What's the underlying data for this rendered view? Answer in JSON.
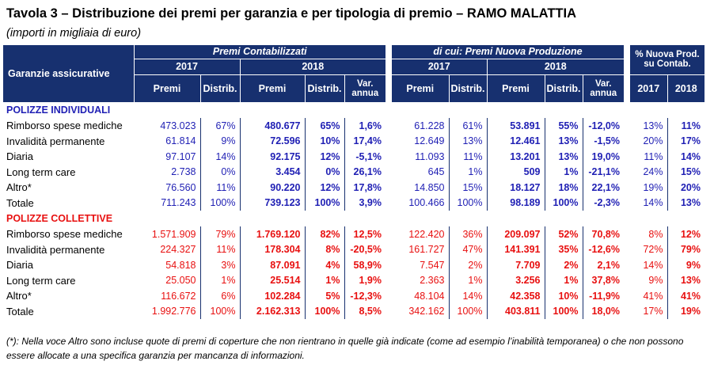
{
  "title": "Tavola 3 – Distribuzione dei premi per garanzia e per tipologia di premio – RAMO MALATTIA",
  "subtitle": "(importi in migliaia di euro)",
  "header": {
    "group_contab": "Premi Contabilizzati",
    "group_np": "di cui: Premi Nuova Produzione",
    "group_pct": "% Nuova Prod. su Contab.",
    "year_2017": "2017",
    "year_2018": "2018",
    "row_label": "Garanzie assicurative",
    "premi": "Premi",
    "distrib": "Distrib.",
    "var": "Var. annua"
  },
  "sections": [
    {
      "name": "POLIZZE INDIVIDUALI",
      "rows": [
        {
          "label": "Rimborso spese mediche",
          "v": [
            "473.023",
            "67%",
            "480.677",
            "65%",
            "1,6%",
            "61.228",
            "61%",
            "53.891",
            "55%",
            "-12,0%",
            "13%",
            "11%"
          ]
        },
        {
          "label": "Invalidità permanente",
          "v": [
            "61.814",
            "9%",
            "72.596",
            "10%",
            "17,4%",
            "12.649",
            "13%",
            "12.461",
            "13%",
            "-1,5%",
            "20%",
            "17%"
          ]
        },
        {
          "label": "Diaria",
          "v": [
            "97.107",
            "14%",
            "92.175",
            "12%",
            "-5,1%",
            "11.093",
            "11%",
            "13.201",
            "13%",
            "19,0%",
            "11%",
            "14%"
          ]
        },
        {
          "label": "Long term care",
          "v": [
            "2.738",
            "0%",
            "3.454",
            "0%",
            "26,1%",
            "645",
            "1%",
            "509",
            "1%",
            "-21,1%",
            "24%",
            "15%"
          ]
        },
        {
          "label": "Altro*",
          "v": [
            "76.560",
            "11%",
            "90.220",
            "12%",
            "17,8%",
            "14.850",
            "15%",
            "18.127",
            "18%",
            "22,1%",
            "19%",
            "20%"
          ]
        },
        {
          "label": "Totale",
          "v": [
            "711.243",
            "100%",
            "739.123",
            "100%",
            "3,9%",
            "100.466",
            "100%",
            "98.189",
            "100%",
            "-2,3%",
            "14%",
            "13%"
          ]
        }
      ]
    },
    {
      "name": "POLIZZE COLLETTIVE",
      "rows": [
        {
          "label": "Rimborso spese mediche",
          "v": [
            "1.571.909",
            "79%",
            "1.769.120",
            "82%",
            "12,5%",
            "122.420",
            "36%",
            "209.097",
            "52%",
            "70,8%",
            "8%",
            "12%"
          ]
        },
        {
          "label": "Invalidità permanente",
          "v": [
            "224.327",
            "11%",
            "178.304",
            "8%",
            "-20,5%",
            "161.727",
            "47%",
            "141.391",
            "35%",
            "-12,6%",
            "72%",
            "79%"
          ]
        },
        {
          "label": "Diaria",
          "v": [
            "54.818",
            "3%",
            "87.091",
            "4%",
            "58,9%",
            "7.547",
            "2%",
            "7.709",
            "2%",
            "2,1%",
            "14%",
            "9%"
          ]
        },
        {
          "label": "Long term care",
          "v": [
            "25.050",
            "1%",
            "25.514",
            "1%",
            "1,9%",
            "2.363",
            "1%",
            "3.256",
            "1%",
            "37,8%",
            "9%",
            "13%"
          ]
        },
        {
          "label": "Altro*",
          "v": [
            "116.672",
            "6%",
            "102.284",
            "5%",
            "-12,3%",
            "48.104",
            "14%",
            "42.358",
            "10%",
            "-11,9%",
            "41%",
            "41%"
          ]
        },
        {
          "label": "Totale",
          "v": [
            "1.992.776",
            "100%",
            "2.162.313",
            "100%",
            "8,5%",
            "342.162",
            "100%",
            "403.811",
            "100%",
            "18,0%",
            "17%",
            "19%"
          ]
        }
      ]
    }
  ],
  "footnote": "(*): Nella voce Altro sono incluse quote di premi di coperture che non rientrano in quelle già indicate (come ad esempio l’inabilità temporanea) o che non possono essere allocate a una specifica garanzia per mancanza di informazioni."
}
